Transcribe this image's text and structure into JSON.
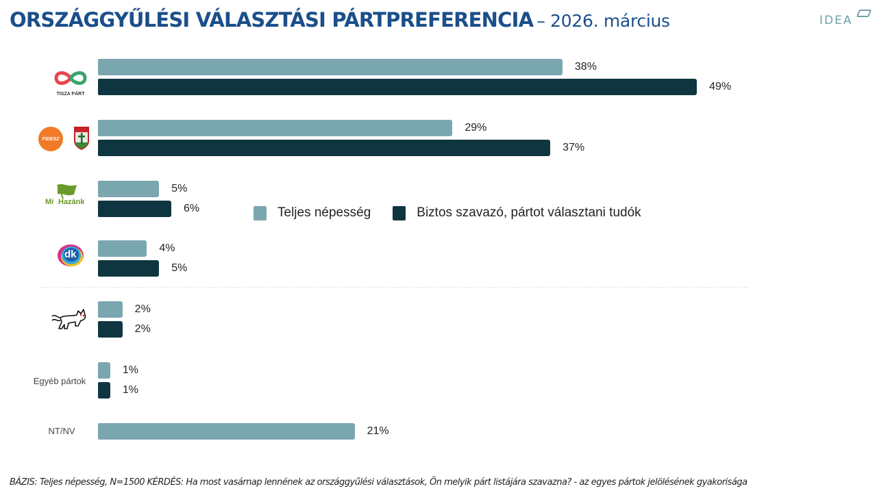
{
  "header": {
    "title": "ORSZÁGGYŰLÉSI VÁLASZTÁSI PÁRTPREFERENCIA",
    "subtitle": "– 2026. március",
    "brand": "IDEA"
  },
  "colors": {
    "title": "#1b4f8a",
    "series_light": "#7aa6b0",
    "series_dark": "#0f3640",
    "brand": "#6fa0a8"
  },
  "legend": {
    "items": [
      {
        "label": "Teljes népesség",
        "color": "#7aa6b0"
      },
      {
        "label": "Biztos szavazó, pártot választani tudók",
        "color": "#0f3640"
      }
    ]
  },
  "logos": {
    "tisza": "TISZA PÁRT",
    "fidesz": "FIDESZ",
    "kdnp": "KDNP",
    "mihazank_1": "Mi",
    "mihazank_2": "Hazánk",
    "dk": "dk"
  },
  "labels": {
    "egyeb": "Egyéb pártok",
    "ntnv": "NT/NV"
  },
  "footer": "BÁZIS: Teljes népesség, N=1500  KÉRDÉS:  Ha most vasárnap lennének az országgyűlési választások, Ön melyik párt listájára szavazna? - az egyes pártok jelölésének gyakorisága",
  "chart_data": {
    "type": "bar",
    "orientation": "horizontal",
    "title": "ORSZÁGGYŰLÉSI VÁLASZTÁSI PÁRTPREFERENCIA – 2026. március",
    "categories": [
      "TISZA PÁRT",
      "FIDESZ-KDNP",
      "Mi Hazánk",
      "DK",
      "MKKP",
      "Egyéb pártok",
      "NT/NV"
    ],
    "series": [
      {
        "name": "Teljes népesség",
        "values": [
          38,
          29,
          5,
          4,
          2,
          1,
          21
        ]
      },
      {
        "name": "Biztos szavazó, pártot választani tudók",
        "values": [
          49,
          37,
          6,
          5,
          2,
          1,
          null
        ]
      }
    ],
    "value_labels": {
      "light": [
        "38%",
        "29%",
        "5%",
        "4%",
        "2%",
        "1%",
        "21%"
      ],
      "dark": [
        "49%",
        "37%",
        "6%",
        "5%",
        "2%",
        "1%",
        ""
      ]
    },
    "unit": "%",
    "xlabel": "",
    "ylabel": "",
    "xlim": [
      0,
      50
    ],
    "grid": false,
    "legend_position": "inside-center"
  }
}
